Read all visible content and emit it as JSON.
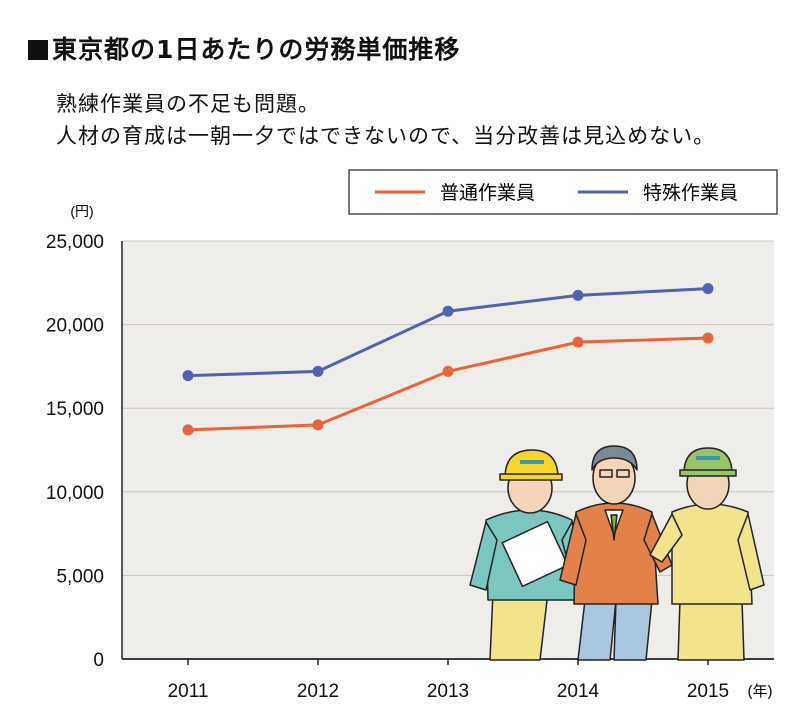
{
  "header": {
    "title": "東京都の1日あたりの労務単価推移",
    "subtitle_lines": [
      "熟練作業員の不足も問題。",
      "人材の育成は一朝一夕ではできないので、当分改善は見込めない。"
    ]
  },
  "chart_data": {
    "type": "line",
    "title": "",
    "xlabel": "(年)",
    "ylabel": "(円)",
    "categories": [
      "2011",
      "2012",
      "2013",
      "2014",
      "2015"
    ],
    "ylim": [
      0,
      25000
    ],
    "yticks": [
      0,
      5000,
      10000,
      15000,
      20000,
      25000
    ],
    "ytick_labels": [
      "0",
      "5,000",
      "10,000",
      "15,000",
      "20,000",
      "25,000"
    ],
    "grid": true,
    "legend": "top-right",
    "series": [
      {
        "name": "普通作業員",
        "color": "#e8643a",
        "values": [
          13700,
          14000,
          17200,
          18950,
          19200
        ]
      },
      {
        "name": "特殊作業員",
        "color": "#4f63ae",
        "values": [
          16950,
          17200,
          20800,
          21750,
          22150
        ]
      }
    ],
    "background": "#efedea",
    "grid_color": "#c8c5c0"
  },
  "illustration": {
    "subject": "three-construction-workers"
  }
}
